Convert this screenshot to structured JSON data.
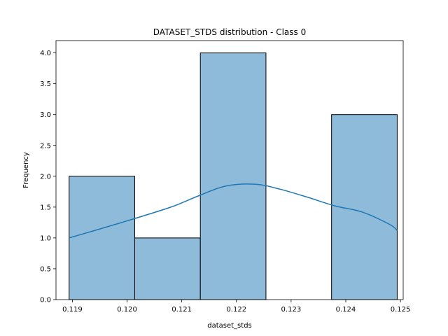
{
  "chart_data": {
    "type": "bar",
    "title": "DATASET_STDS distribution - Class 0",
    "xlabel": "dataset_stds",
    "ylabel": "Frequency",
    "xlim": [
      0.1187,
      0.12505
    ],
    "ylim": [
      0,
      4.2
    ],
    "bins": [
      {
        "x0": 0.11894,
        "x1": 0.12014,
        "value": 2
      },
      {
        "x0": 0.12014,
        "x1": 0.12134,
        "value": 1
      },
      {
        "x0": 0.12134,
        "x1": 0.12254,
        "value": 4
      },
      {
        "x0": 0.12254,
        "x1": 0.12374,
        "value": 0
      },
      {
        "x0": 0.12374,
        "x1": 0.12494,
        "value": 3
      }
    ],
    "kde": {
      "x": [
        0.11894,
        0.1199,
        0.1208,
        0.1213,
        0.1218,
        0.12235,
        0.1228,
        0.1233,
        0.1238,
        0.1243,
        0.1248,
        0.12494
      ],
      "y": [
        1.0,
        1.25,
        1.5,
        1.68,
        1.84,
        1.87,
        1.79,
        1.66,
        1.52,
        1.42,
        1.22,
        1.12
      ]
    },
    "xticks": [
      "0.119",
      "0.120",
      "0.121",
      "0.122",
      "0.123",
      "0.124",
      "0.125"
    ],
    "yticks": [
      "0.0",
      "0.5",
      "1.0",
      "1.5",
      "2.0",
      "2.5",
      "3.0",
      "3.5",
      "4.0"
    ],
    "colors": {
      "bar_fill": "#8fbbda",
      "bar_edge": "#000000",
      "kde_line": "#1f77b4"
    },
    "grid": false
  }
}
